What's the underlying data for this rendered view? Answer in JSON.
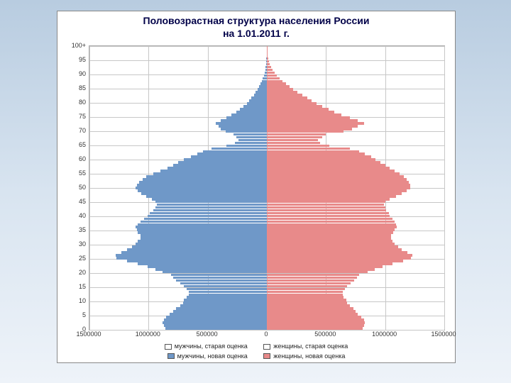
{
  "chart": {
    "type": "population-pyramid",
    "title_line1": "Половозрастная структура населения России",
    "title_line2": "на 1.01.2011 г.",
    "title_fontsize": 14,
    "title_color": "#000048",
    "background_color": "#ffffff",
    "grid_color": "#c7c7c7",
    "xlim": [
      -1500000,
      1500000
    ],
    "xticks": [
      -1500000,
      -1000000,
      -500000,
      0,
      500000,
      1000000,
      1500000
    ],
    "xtick_labels": [
      "1500000",
      "1000000",
      "500000",
      "0",
      "500000",
      "1000000",
      "1500000"
    ],
    "ylim": [
      0,
      100
    ],
    "yticks": [
      0,
      5,
      10,
      15,
      20,
      25,
      30,
      35,
      40,
      45,
      50,
      55,
      60,
      65,
      70,
      75,
      80,
      85,
      90,
      95,
      100
    ],
    "ytick_labels": [
      "0",
      "5",
      "10",
      "15",
      "20",
      "25",
      "30",
      "35",
      "40",
      "45",
      "50",
      "55",
      "60",
      "65",
      "70",
      "75",
      "80",
      "85",
      "90",
      "95",
      "100+"
    ],
    "male_new_color": "#6f98c8",
    "female_new_color": "#e88a8a",
    "male_old_color": "#ffffff",
    "female_old_color": "#ffffff",
    "legend": {
      "row1": [
        {
          "swatch": "#ffffff",
          "label": "мужчины, старая оценка"
        },
        {
          "swatch": "#ffffff",
          "label": "женщины, старая оценка"
        }
      ],
      "row2": [
        {
          "swatch": "#6f98c8",
          "label": "мужчины, новая оценка"
        },
        {
          "swatch": "#e88a8a",
          "label": "женщины, новая оценка"
        }
      ]
    },
    "male_new": [
      860000,
      870000,
      880000,
      870000,
      850000,
      820000,
      790000,
      770000,
      730000,
      710000,
      700000,
      680000,
      660000,
      660000,
      680000,
      700000,
      730000,
      770000,
      790000,
      810000,
      880000,
      940000,
      1010000,
      1090000,
      1180000,
      1270000,
      1280000,
      1230000,
      1180000,
      1140000,
      1110000,
      1090000,
      1070000,
      1070000,
      1090000,
      1100000,
      1110000,
      1090000,
      1070000,
      1040000,
      1010000,
      990000,
      960000,
      940000,
      930000,
      940000,
      970000,
      1020000,
      1060000,
      1090000,
      1110000,
      1100000,
      1080000,
      1050000,
      1020000,
      960000,
      900000,
      840000,
      790000,
      750000,
      700000,
      640000,
      590000,
      540000,
      470000,
      340000,
      270000,
      240000,
      260000,
      280000,
      350000,
      390000,
      410000,
      430000,
      390000,
      340000,
      300000,
      260000,
      230000,
      200000,
      170000,
      150000,
      130000,
      110000,
      95000,
      80000,
      67000,
      55000,
      44000,
      34000,
      26000,
      19000,
      14000,
      10000,
      7000,
      5000,
      3500,
      2300,
      1500,
      1000,
      600
    ],
    "female_new": [
      810000,
      820000,
      830000,
      820000,
      800000,
      770000,
      750000,
      730000,
      700000,
      680000,
      670000,
      650000,
      640000,
      640000,
      660000,
      680000,
      710000,
      740000,
      760000,
      780000,
      850000,
      910000,
      980000,
      1060000,
      1150000,
      1220000,
      1230000,
      1190000,
      1140000,
      1110000,
      1080000,
      1060000,
      1050000,
      1050000,
      1070000,
      1080000,
      1100000,
      1090000,
      1080000,
      1060000,
      1040000,
      1030000,
      1010000,
      1000000,
      990000,
      1000000,
      1040000,
      1090000,
      1140000,
      1180000,
      1210000,
      1210000,
      1200000,
      1180000,
      1160000,
      1120000,
      1080000,
      1040000,
      1000000,
      960000,
      920000,
      880000,
      830000,
      780000,
      700000,
      530000,
      450000,
      430000,
      470000,
      500000,
      650000,
      720000,
      770000,
      820000,
      770000,
      700000,
      630000,
      570000,
      520000,
      470000,
      420000,
      380000,
      340000,
      300000,
      260000,
      220000,
      190000,
      160000,
      130000,
      105000,
      83000,
      63000,
      48000,
      35000,
      26000,
      18000,
      12500,
      8500,
      5600,
      3700,
      2300
    ]
  }
}
